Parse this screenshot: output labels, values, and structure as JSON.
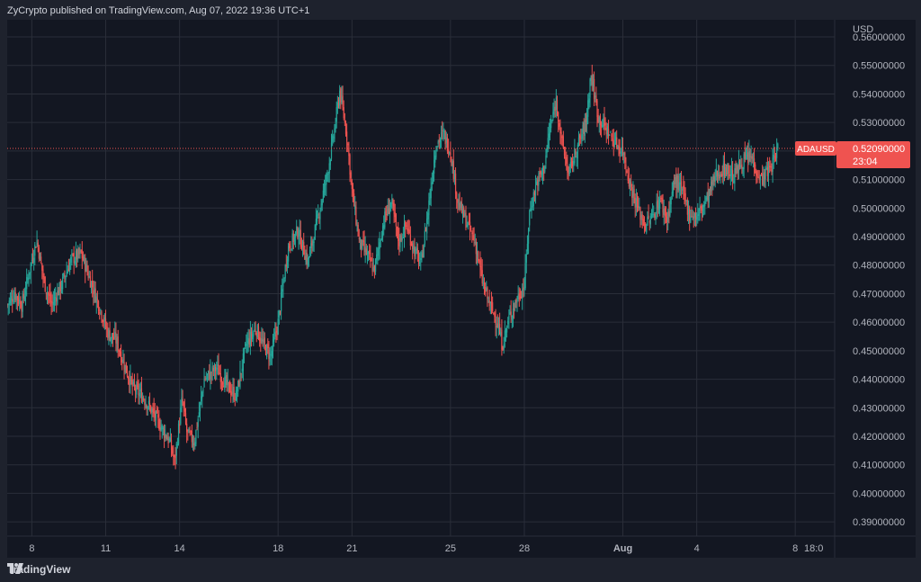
{
  "header": {
    "text": "ZyCrypto published on TradingView.com, Aug 07, 2022 19:36 UTC+1"
  },
  "footer": {
    "brand": "TradingView"
  },
  "colors": {
    "background": "#131722",
    "up": "#26a69a",
    "down": "#ef5350",
    "grid": "#2a2e39",
    "text": "#b2b5be",
    "price_line": "#ef5350"
  },
  "chart_data": {
    "type": "candlestick",
    "symbol": "ADAUSD",
    "currency": "USD",
    "ylim": [
      0.385,
      0.566
    ],
    "y_ticks": [
      "0.56000000",
      "0.55000000",
      "0.54000000",
      "0.53000000",
      "0.52000000",
      "0.51000000",
      "0.50000000",
      "0.49000000",
      "0.48000000",
      "0.47000000",
      "0.46000000",
      "0.45000000",
      "0.44000000",
      "0.43000000",
      "0.42000000",
      "0.41000000",
      "0.40000000",
      "0.39000000"
    ],
    "x_ticks": [
      {
        "label": "8",
        "t": 1
      },
      {
        "label": "11",
        "t": 4
      },
      {
        "label": "14",
        "t": 7
      },
      {
        "label": "18",
        "t": 11
      },
      {
        "label": "21",
        "t": 14
      },
      {
        "label": "25",
        "t": 18
      },
      {
        "label": "28",
        "t": 21
      },
      {
        "label": "Aug",
        "t": 25
      },
      {
        "label": "4",
        "t": 28
      },
      {
        "label": "8",
        "t": 32
      },
      {
        "label": "18:0",
        "t": 32.75
      }
    ],
    "x_range": [
      0,
      33.6
    ],
    "last_price": {
      "value": 0.5209,
      "label": "0.52090000",
      "countdown": "23:04",
      "symbol_label": "ADAUSD"
    },
    "path": [
      [
        0.0,
        0.466
      ],
      [
        0.3,
        0.47
      ],
      [
        0.6,
        0.466
      ],
      [
        1.0,
        0.482
      ],
      [
        1.2,
        0.489
      ],
      [
        1.5,
        0.474
      ],
      [
        1.8,
        0.466
      ],
      [
        2.2,
        0.473
      ],
      [
        2.6,
        0.482
      ],
      [
        3.0,
        0.484
      ],
      [
        3.4,
        0.474
      ],
      [
        3.8,
        0.464
      ],
      [
        4.1,
        0.456
      ],
      [
        4.4,
        0.454
      ],
      [
        4.8,
        0.444
      ],
      [
        5.1,
        0.437
      ],
      [
        5.5,
        0.434
      ],
      [
        5.8,
        0.43
      ],
      [
        6.2,
        0.424
      ],
      [
        6.6,
        0.418
      ],
      [
        6.8,
        0.411
      ],
      [
        7.1,
        0.433
      ],
      [
        7.3,
        0.421
      ],
      [
        7.6,
        0.418
      ],
      [
        8.0,
        0.44
      ],
      [
        8.5,
        0.444
      ],
      [
        8.9,
        0.438
      ],
      [
        9.3,
        0.434
      ],
      [
        9.7,
        0.452
      ],
      [
        10.1,
        0.458
      ],
      [
        10.4,
        0.452
      ],
      [
        10.7,
        0.448
      ],
      [
        11.0,
        0.46
      ],
      [
        11.4,
        0.486
      ],
      [
        11.8,
        0.492
      ],
      [
        12.2,
        0.481
      ],
      [
        12.6,
        0.496
      ],
      [
        13.0,
        0.512
      ],
      [
        13.3,
        0.528
      ],
      [
        13.5,
        0.541
      ],
      [
        13.8,
        0.525
      ],
      [
        14.0,
        0.506
      ],
      [
        14.3,
        0.488
      ],
      [
        14.6,
        0.484
      ],
      [
        14.9,
        0.478
      ],
      [
        15.3,
        0.496
      ],
      [
        15.6,
        0.502
      ],
      [
        15.9,
        0.488
      ],
      [
        16.2,
        0.494
      ],
      [
        16.5,
        0.486
      ],
      [
        16.8,
        0.48
      ],
      [
        17.1,
        0.5
      ],
      [
        17.4,
        0.522
      ],
      [
        17.7,
        0.526
      ],
      [
        18.0,
        0.52
      ],
      [
        18.3,
        0.502
      ],
      [
        18.6,
        0.496
      ],
      [
        19.0,
        0.488
      ],
      [
        19.3,
        0.474
      ],
      [
        19.6,
        0.466
      ],
      [
        19.9,
        0.46
      ],
      [
        20.1,
        0.452
      ],
      [
        20.4,
        0.462
      ],
      [
        20.7,
        0.468
      ],
      [
        21.0,
        0.473
      ],
      [
        21.2,
        0.498
      ],
      [
        21.5,
        0.509
      ],
      [
        21.8,
        0.514
      ],
      [
        22.0,
        0.526
      ],
      [
        22.3,
        0.538
      ],
      [
        22.5,
        0.524
      ],
      [
        22.8,
        0.512
      ],
      [
        23.1,
        0.52
      ],
      [
        23.5,
        0.53
      ],
      [
        23.7,
        0.547
      ],
      [
        24.0,
        0.532
      ],
      [
        24.3,
        0.528
      ],
      [
        24.6,
        0.524
      ],
      [
        25.0,
        0.52
      ],
      [
        25.3,
        0.508
      ],
      [
        25.6,
        0.5
      ],
      [
        25.9,
        0.494
      ],
      [
        26.2,
        0.497
      ],
      [
        26.5,
        0.503
      ],
      [
        26.8,
        0.496
      ],
      [
        27.1,
        0.51
      ],
      [
        27.4,
        0.506
      ],
      [
        27.7,
        0.498
      ],
      [
        28.0,
        0.497
      ],
      [
        28.4,
        0.503
      ],
      [
        28.8,
        0.512
      ],
      [
        29.2,
        0.514
      ],
      [
        29.5,
        0.511
      ],
      [
        29.8,
        0.516
      ],
      [
        30.2,
        0.518
      ],
      [
        30.6,
        0.51
      ],
      [
        31.0,
        0.514
      ],
      [
        31.3,
        0.521
      ]
    ]
  }
}
